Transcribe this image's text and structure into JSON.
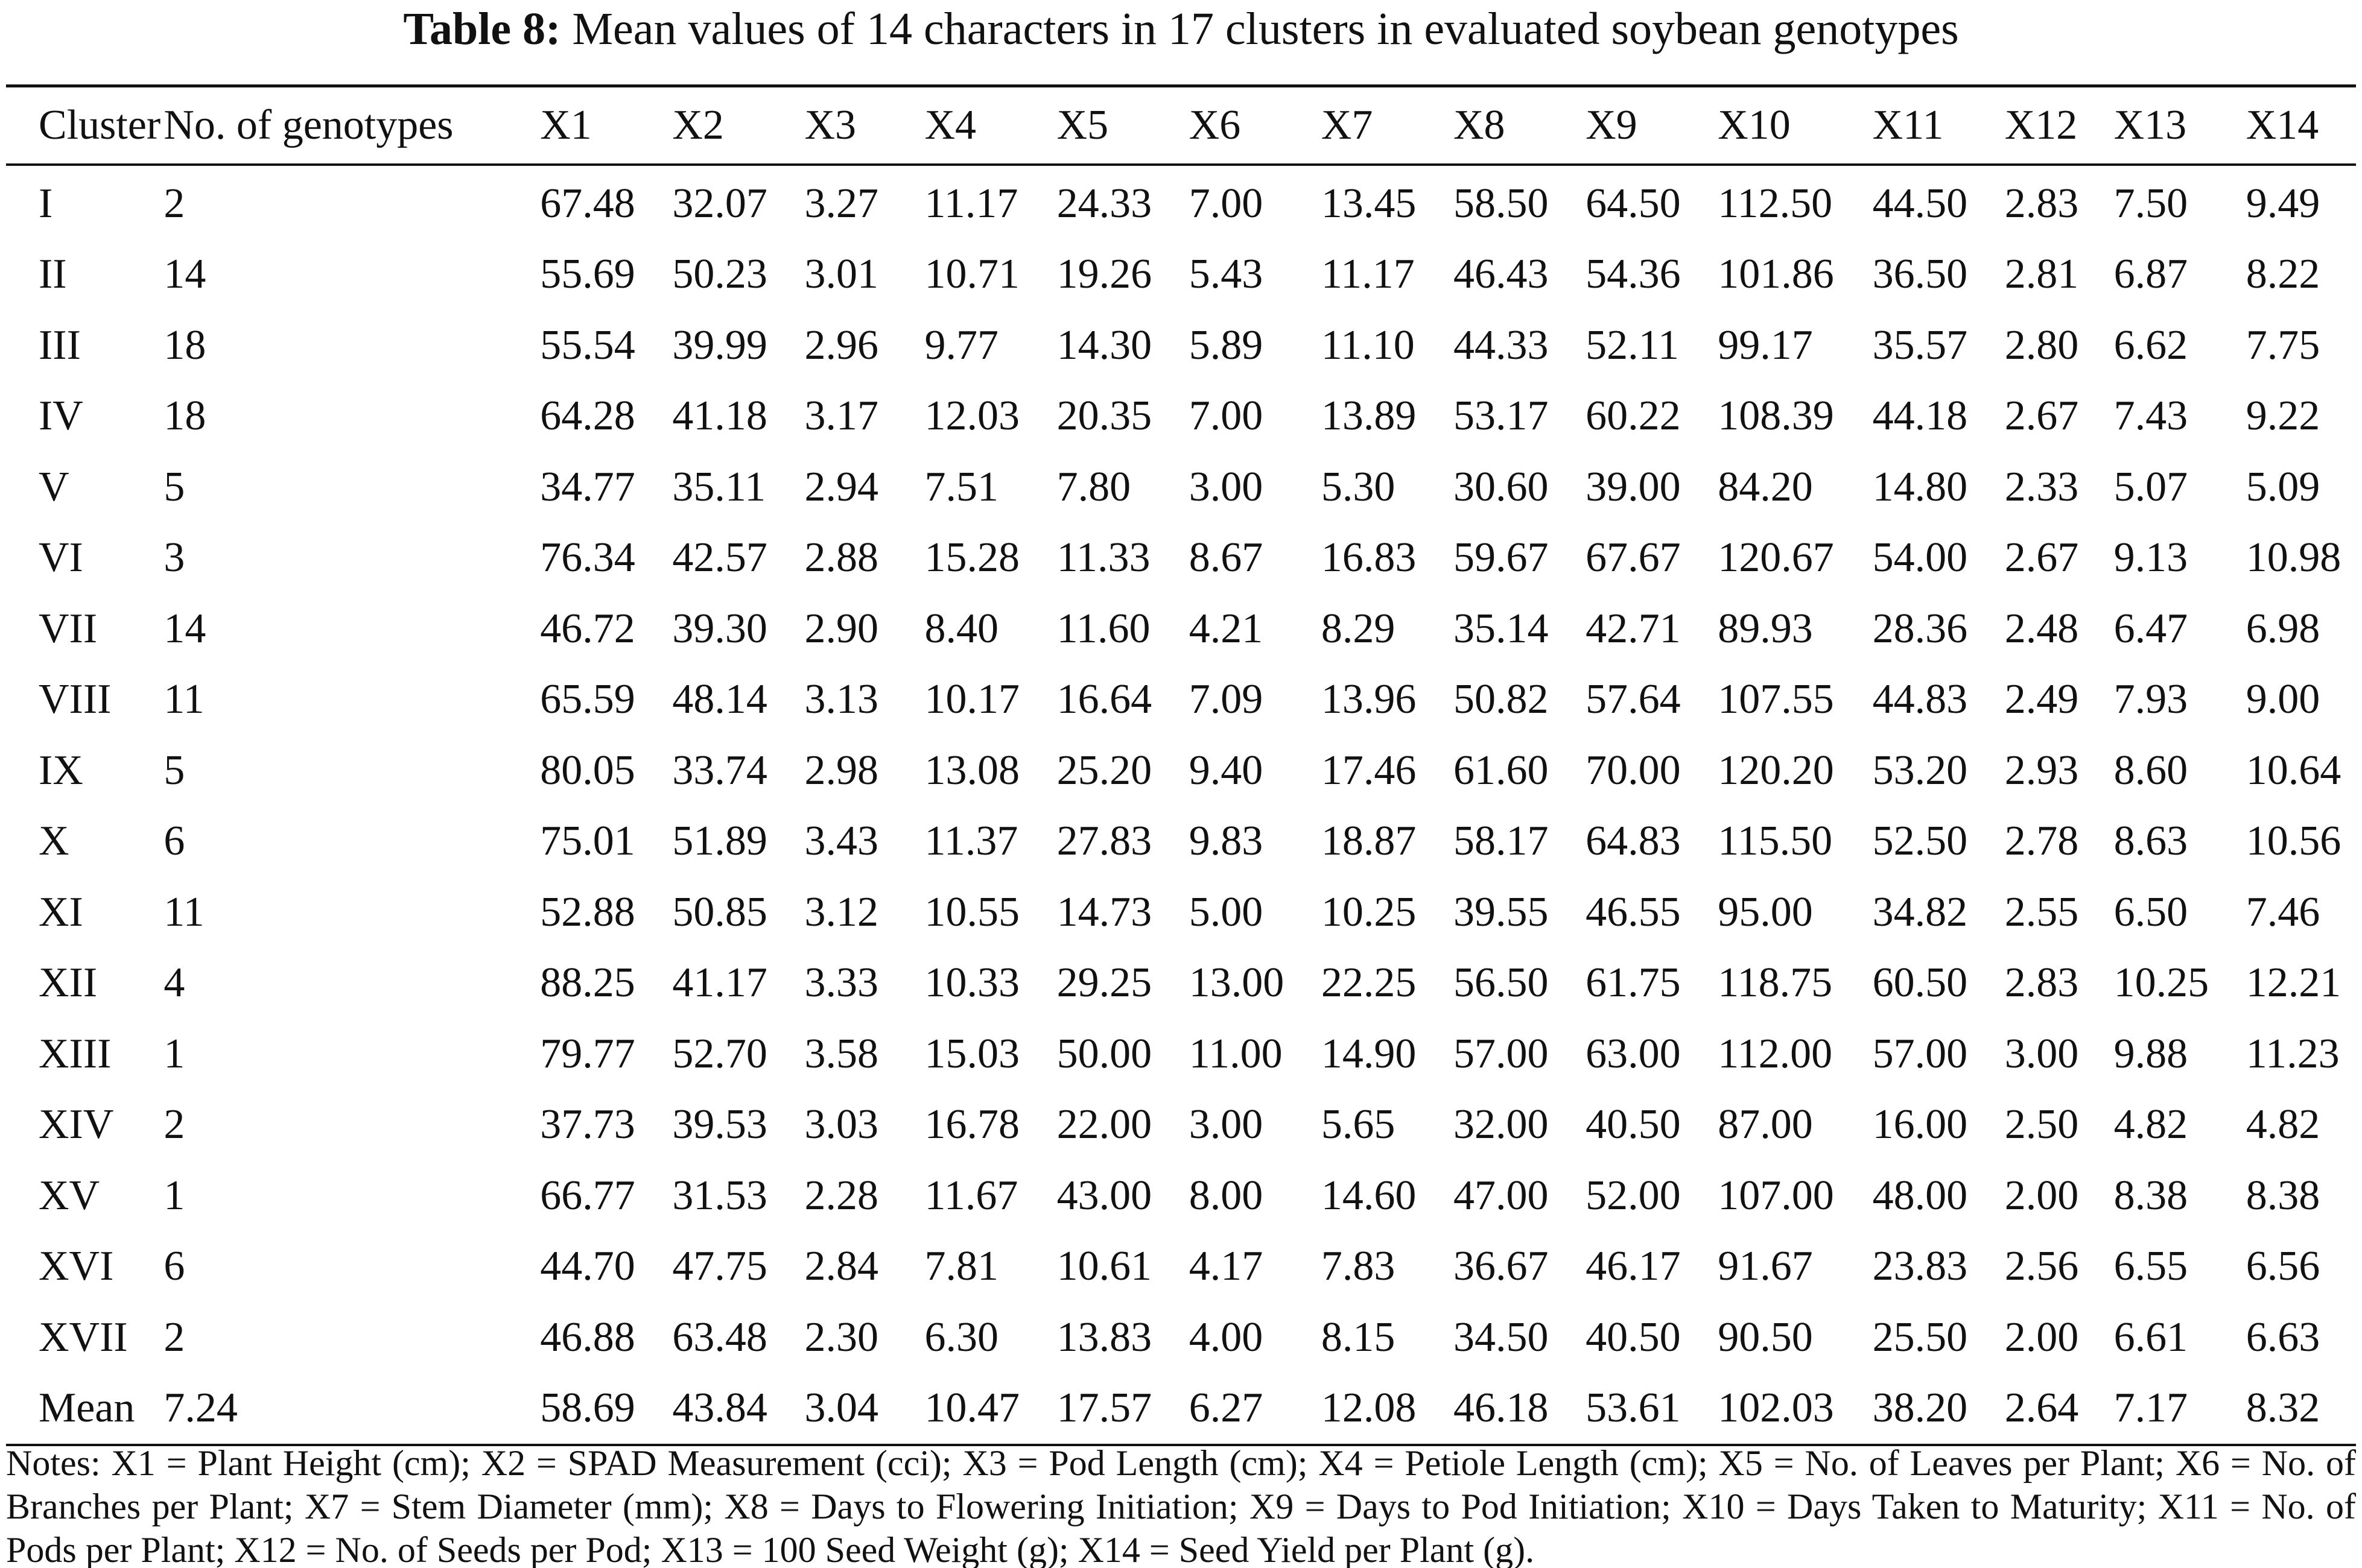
{
  "caption": {
    "label": "Table 8:",
    "text": "Mean values of 14 characters in 17 clusters in evaluated soybean genotypes"
  },
  "table": {
    "headers": [
      "Cluster",
      "No. of genotypes",
      "X1",
      "X2",
      "X3",
      "X4",
      "X5",
      "X6",
      "X7",
      "X8",
      "X9",
      "X10",
      "X11",
      "X12",
      "X13",
      "X14"
    ],
    "rows": [
      [
        "I",
        "2",
        "67.48",
        "32.07",
        "3.27",
        "11.17",
        "24.33",
        "7.00",
        "13.45",
        "58.50",
        "64.50",
        "112.50",
        "44.50",
        "2.83",
        "7.50",
        "9.49"
      ],
      [
        "II",
        "14",
        "55.69",
        "50.23",
        "3.01",
        "10.71",
        "19.26",
        "5.43",
        "11.17",
        "46.43",
        "54.36",
        "101.86",
        "36.50",
        "2.81",
        "6.87",
        "8.22"
      ],
      [
        "III",
        "18",
        "55.54",
        "39.99",
        "2.96",
        "9.77",
        "14.30",
        "5.89",
        "11.10",
        "44.33",
        "52.11",
        "99.17",
        "35.57",
        "2.80",
        "6.62",
        "7.75"
      ],
      [
        "IV",
        "18",
        "64.28",
        "41.18",
        "3.17",
        "12.03",
        "20.35",
        "7.00",
        "13.89",
        "53.17",
        "60.22",
        "108.39",
        "44.18",
        "2.67",
        "7.43",
        "9.22"
      ],
      [
        "V",
        "5",
        "34.77",
        "35.11",
        "2.94",
        "7.51",
        "7.80",
        "3.00",
        "5.30",
        "30.60",
        "39.00",
        "84.20",
        "14.80",
        "2.33",
        "5.07",
        "5.09"
      ],
      [
        "VI",
        "3",
        "76.34",
        "42.57",
        "2.88",
        "15.28",
        "11.33",
        "8.67",
        "16.83",
        "59.67",
        "67.67",
        "120.67",
        "54.00",
        "2.67",
        "9.13",
        "10.98"
      ],
      [
        "VII",
        "14",
        "46.72",
        "39.30",
        "2.90",
        "8.40",
        "11.60",
        "4.21",
        "8.29",
        "35.14",
        "42.71",
        "89.93",
        "28.36",
        "2.48",
        "6.47",
        "6.98"
      ],
      [
        "VIII",
        "11",
        "65.59",
        "48.14",
        "3.13",
        "10.17",
        "16.64",
        "7.09",
        "13.96",
        "50.82",
        "57.64",
        "107.55",
        "44.83",
        "2.49",
        "7.93",
        "9.00"
      ],
      [
        "IX",
        "5",
        "80.05",
        "33.74",
        "2.98",
        "13.08",
        "25.20",
        "9.40",
        "17.46",
        "61.60",
        "70.00",
        "120.20",
        "53.20",
        "2.93",
        "8.60",
        "10.64"
      ],
      [
        "X",
        "6",
        "75.01",
        "51.89",
        "3.43",
        "11.37",
        "27.83",
        "9.83",
        "18.87",
        "58.17",
        "64.83",
        "115.50",
        "52.50",
        "2.78",
        "8.63",
        "10.56"
      ],
      [
        "XI",
        "11",
        "52.88",
        "50.85",
        "3.12",
        "10.55",
        "14.73",
        "5.00",
        "10.25",
        "39.55",
        "46.55",
        "95.00",
        "34.82",
        "2.55",
        "6.50",
        "7.46"
      ],
      [
        "XII",
        "4",
        "88.25",
        "41.17",
        "3.33",
        "10.33",
        "29.25",
        "13.00",
        "22.25",
        "56.50",
        "61.75",
        "118.75",
        "60.50",
        "2.83",
        "10.25",
        "12.21"
      ],
      [
        "XIII",
        "1",
        "79.77",
        "52.70",
        "3.58",
        "15.03",
        "50.00",
        "11.00",
        "14.90",
        "57.00",
        "63.00",
        "112.00",
        "57.00",
        "3.00",
        "9.88",
        "11.23"
      ],
      [
        "XIV",
        "2",
        "37.73",
        "39.53",
        "3.03",
        "16.78",
        "22.00",
        "3.00",
        "5.65",
        "32.00",
        "40.50",
        "87.00",
        "16.00",
        "2.50",
        "4.82",
        "4.82"
      ],
      [
        "XV",
        "1",
        "66.77",
        "31.53",
        "2.28",
        "11.67",
        "43.00",
        "8.00",
        "14.60",
        "47.00",
        "52.00",
        "107.00",
        "48.00",
        "2.00",
        "8.38",
        "8.38"
      ],
      [
        "XVI",
        "6",
        "44.70",
        "47.75",
        "2.84",
        "7.81",
        "10.61",
        "4.17",
        "7.83",
        "36.67",
        "46.17",
        "91.67",
        "23.83",
        "2.56",
        "6.55",
        "6.56"
      ],
      [
        "XVII",
        "2",
        "46.88",
        "63.48",
        "2.30",
        "6.30",
        "13.83",
        "4.00",
        "8.15",
        "34.50",
        "40.50",
        "90.50",
        "25.50",
        "2.00",
        "6.61",
        "6.63"
      ],
      [
        "Mean",
        "7.24",
        "58.69",
        "43.84",
        "3.04",
        "10.47",
        "17.57",
        "6.27",
        "12.08",
        "46.18",
        "53.61",
        "102.03",
        "38.20",
        "2.64",
        "7.17",
        "8.32"
      ]
    ]
  },
  "notes": "Notes: X1 = Plant Height (cm); X2 = SPAD Measurement (cci); X3 = Pod Length (cm); X4 = Petiole Length (cm); X5 = No. of Leaves per Plant; X6 = No. of Branches per Plant; X7 = Stem Diameter (mm); X8 = Days to Flowering Initiation; X9 = Days to Pod Initiation; X10 = Days Taken to Maturity; X11 = No. of Pods per Plant; X12 = No. of Seeds per Pod; X13 = 100 Seed Weight (g); X14 = Seed Yield per Plant (g)."
}
